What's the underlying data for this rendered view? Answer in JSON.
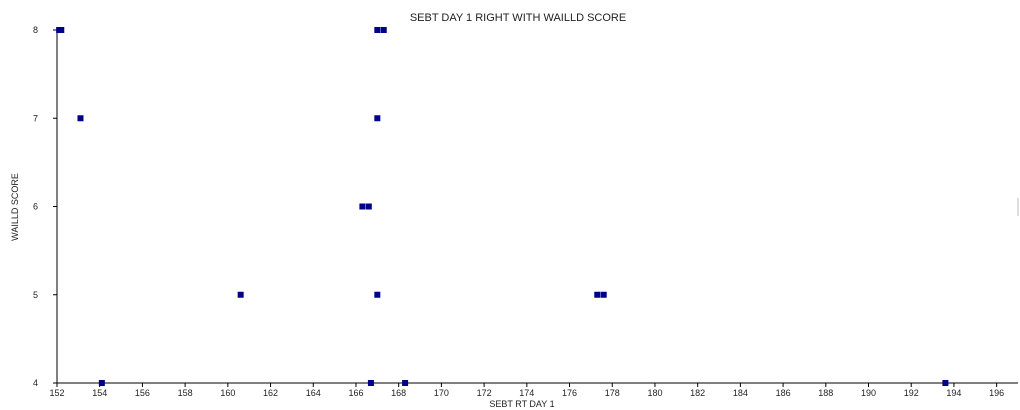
{
  "chart_data": {
    "type": "scatter",
    "title": "SEBT DAY 1 RIGHT WITH WAILLD SCORE",
    "xlabel": "SEBT RT DAY 1",
    "ylabel": "WAILLD SCORE",
    "xlim": [
      152,
      197
    ],
    "ylim": [
      4,
      8
    ],
    "x_ticks": [
      152,
      154,
      156,
      158,
      160,
      162,
      164,
      166,
      168,
      170,
      172,
      174,
      176,
      178,
      180,
      182,
      184,
      186,
      188,
      190,
      192,
      194,
      196
    ],
    "y_ticks": [
      4,
      5,
      6,
      7,
      8
    ],
    "grid": false,
    "marker_color": "#00008B",
    "points": [
      {
        "x": 152.1,
        "y": 8
      },
      {
        "x": 152.2,
        "y": 8
      },
      {
        "x": 167.0,
        "y": 8
      },
      {
        "x": 167.3,
        "y": 8
      },
      {
        "x": 153.1,
        "y": 7
      },
      {
        "x": 167.0,
        "y": 7
      },
      {
        "x": 166.3,
        "y": 6
      },
      {
        "x": 166.6,
        "y": 6
      },
      {
        "x": 160.6,
        "y": 5
      },
      {
        "x": 167.0,
        "y": 5
      },
      {
        "x": 177.3,
        "y": 5
      },
      {
        "x": 177.6,
        "y": 5
      },
      {
        "x": 154.1,
        "y": 4
      },
      {
        "x": 166.7,
        "y": 4
      },
      {
        "x": 168.3,
        "y": 4
      },
      {
        "x": 193.6,
        "y": 4
      }
    ]
  }
}
